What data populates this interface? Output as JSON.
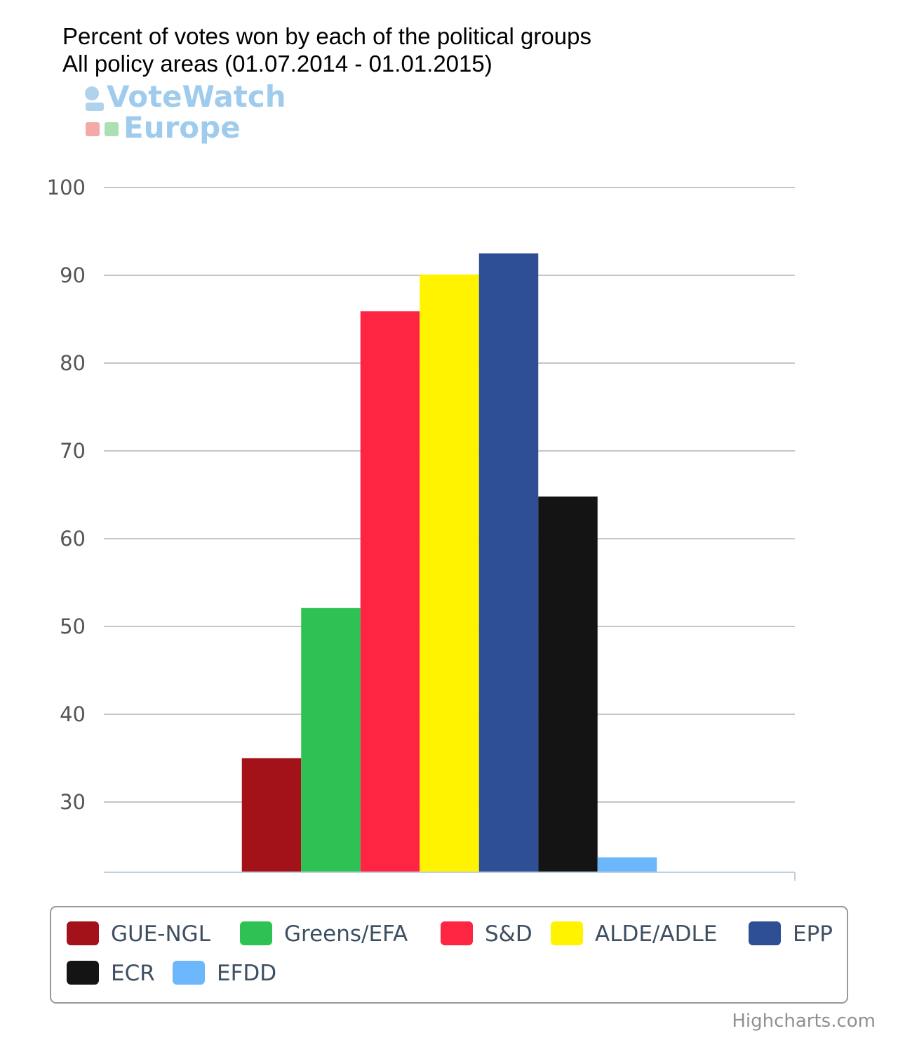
{
  "chart_data": {
    "type": "bar",
    "title": "Percent of votes won by each of the political groups",
    "subtitle": "All policy areas (01.07.2014 - 01.01.2015)",
    "ylim": [
      22,
      100
    ],
    "y_ticks": [
      30,
      40,
      50,
      60,
      70,
      80,
      90,
      100
    ],
    "grid": true,
    "legend_position": "bottom",
    "series": [
      {
        "name": "GUE-NGL",
        "value": 35,
        "color": "#a31119"
      },
      {
        "name": "Greens/EFA",
        "value": 52.1,
        "color": "#30c155"
      },
      {
        "name": "S&D",
        "value": 85.9,
        "color": "#fd2541"
      },
      {
        "name": "ALDE/ADLE",
        "value": 90.1,
        "color": "#fff300"
      },
      {
        "name": "EPP",
        "value": 92.5,
        "color": "#2e4f93"
      },
      {
        "name": "ECR",
        "value": 64.8,
        "color": "#141414"
      },
      {
        "name": "EFDD",
        "value": 23.7,
        "color": "#6cb6fb"
      }
    ]
  },
  "logo": {
    "line1": "VoteWatch",
    "line2": "Europe"
  },
  "credits": "Highcharts.com"
}
